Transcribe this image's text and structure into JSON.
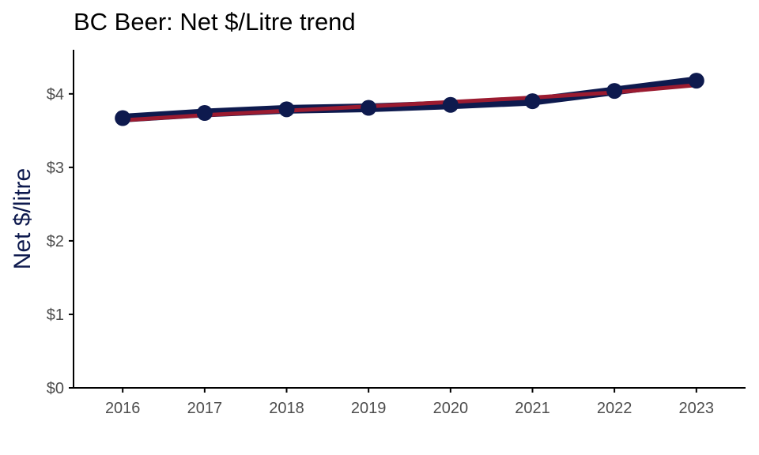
{
  "chart_data": {
    "type": "line",
    "title": "BC Beer: Net $/Litre trend",
    "xlabel": "",
    "ylabel": "Net $/litre",
    "x": [
      2016,
      2017,
      2018,
      2019,
      2020,
      2021,
      2022,
      2023
    ],
    "x_tick_labels": [
      "2016",
      "2017",
      "2018",
      "2019",
      "2020",
      "2021",
      "2022",
      "2023"
    ],
    "y_ticks": [
      0,
      1,
      2,
      3,
      4
    ],
    "y_tick_labels": [
      "$0",
      "$1",
      "$2",
      "$3",
      "$4"
    ],
    "ylim": [
      0,
      4.6
    ],
    "xlim": [
      2015.4,
      2023.6
    ],
    "grid": false,
    "series": [
      {
        "values": [
          3.67,
          3.74,
          3.79,
          3.81,
          3.85,
          3.9,
          4.04,
          4.18
        ],
        "style": "line-with-points",
        "color": "#0e1a4e"
      },
      {
        "values": [
          3.64,
          3.71,
          3.77,
          3.83,
          3.89,
          3.95,
          4.02,
          4.12
        ],
        "style": "trend-line",
        "color": "#9b1b30"
      }
    ],
    "colors": {
      "axis": "#000000",
      "tick_label": "#4d4d4d",
      "ylabel": "#0e1a4e"
    }
  }
}
